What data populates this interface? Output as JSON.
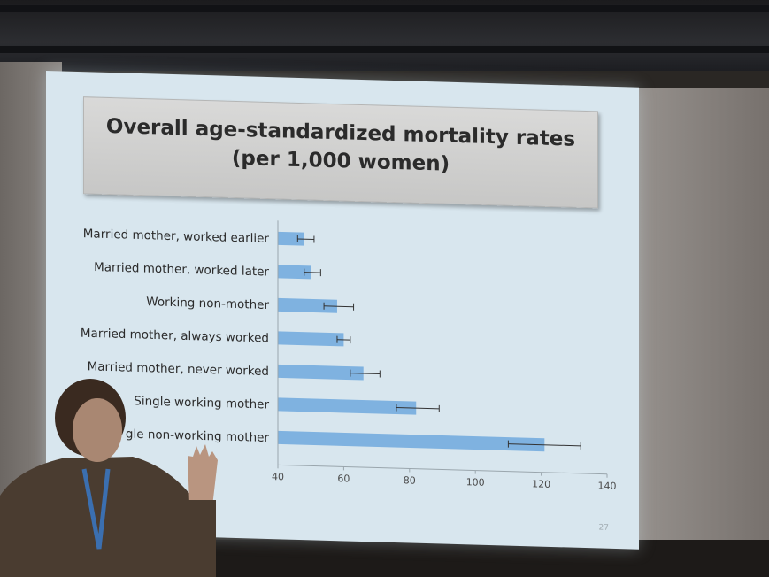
{
  "slide": {
    "title_line1": "Overall age-standardized mortality rates",
    "title_line2": "(per 1,000 women)",
    "page_number": "27"
  },
  "chart_data": {
    "type": "bar",
    "orientation": "horizontal",
    "title": "Overall age-standardized mortality rates (per 1,000 women)",
    "xlabel": "",
    "ylabel": "",
    "xlim": [
      40,
      140
    ],
    "xticks": [
      40,
      60,
      80,
      100,
      120,
      140
    ],
    "grid": false,
    "legend": "none",
    "bar_color": "#7fb2e0",
    "error_color": "#333333",
    "categories": [
      "Married mother, worked earlier",
      "Married mother, worked later",
      "Working non-mother",
      "Married mother, always worked",
      "Married mother, never worked",
      "Single working mother",
      "gle non-working mother"
    ],
    "values": [
      48,
      50,
      58,
      60,
      66,
      82,
      121
    ],
    "error_low": [
      46,
      48,
      54,
      58,
      62,
      76,
      110
    ],
    "error_high": [
      51,
      53,
      63,
      62,
      71,
      89,
      132
    ]
  }
}
